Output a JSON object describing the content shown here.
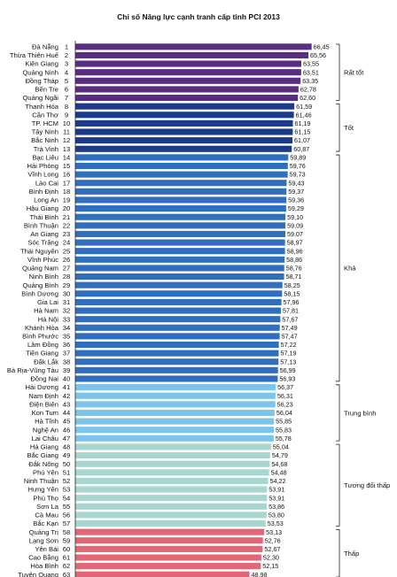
{
  "chart_data": {
    "type": "bar",
    "orientation": "horizontal",
    "title": "Chỉ số Năng lực cạnh tranh cấp tỉnh PCI 2013",
    "xlim": [
      0,
      80
    ],
    "xticks": [
      0,
      5,
      10,
      15,
      20,
      25,
      30,
      35,
      40,
      45,
      50,
      55,
      60,
      65,
      70,
      75,
      80
    ],
    "grid": false,
    "categories": [
      "Đà Nẵng",
      "Thừa Thiên Huế",
      "Kiên Giang",
      "Quảng Ninh",
      "Đồng Tháp",
      "Bến Tre",
      "Quảng Ngãi",
      "Thanh Hóa",
      "Cần Thơ",
      "TP. HCM",
      "Tây Ninh",
      "Bắc Ninh",
      "Trà Vinh",
      "Bạc Liêu",
      "Hải Phòng",
      "Vĩnh Long",
      "Lào Cai",
      "Bình Định",
      "Long An",
      "Hậu Giang",
      "Thái Bình",
      "Bình Thuận",
      "An Giang",
      "Sóc Trăng",
      "Thái Nguyên",
      "Vĩnh Phúc",
      "Quảng Nam",
      "Ninh Bình",
      "Quảng Bình",
      "Bình Dương",
      "Gia Lai",
      "Hà Nam",
      "Hà Nội",
      "Khánh Hòa",
      "Bình Phước",
      "Lâm Đồng",
      "Tiền Giang",
      "Đắk Lắk",
      "Bà Rịa-Vũng Tàu",
      "Đồng Nai",
      "Hải Dương",
      "Nam Định",
      "Điện Biên",
      "Kon Tum",
      "Hà Tĩnh",
      "Nghệ An",
      "Lai Châu",
      "Hà Giang",
      "Bắc Giang",
      "Đắk Nông",
      "Phú Yên",
      "Ninh Thuận",
      "Hưng Yên",
      "Phú Thọ",
      "Sơn La",
      "Cà Mau",
      "Bắc Kạn",
      "Quảng Trị",
      "Lạng Sơn",
      "Yên Bái",
      "Cao Bằng",
      "Hòa Bình",
      "Tuyên Quang"
    ],
    "ranks": [
      1,
      2,
      3,
      4,
      5,
      6,
      7,
      8,
      9,
      10,
      11,
      12,
      13,
      14,
      15,
      16,
      17,
      18,
      19,
      20,
      21,
      22,
      23,
      24,
      25,
      26,
      27,
      28,
      29,
      30,
      31,
      32,
      33,
      34,
      35,
      36,
      37,
      38,
      39,
      40,
      41,
      42,
      43,
      44,
      45,
      46,
      47,
      48,
      49,
      50,
      51,
      52,
      53,
      54,
      55,
      56,
      57,
      58,
      59,
      60,
      61,
      62,
      63
    ],
    "values": [
      66.45,
      65.56,
      63.55,
      63.51,
      63.35,
      62.78,
      62.6,
      61.59,
      61.46,
      61.19,
      61.15,
      61.07,
      60.87,
      59.89,
      59.76,
      59.73,
      59.43,
      59.37,
      59.36,
      59.29,
      59.1,
      59.09,
      59.07,
      58.97,
      58.96,
      58.86,
      58.76,
      58.71,
      58.25,
      58.15,
      57.96,
      57.81,
      57.67,
      57.49,
      57.47,
      57.22,
      57.19,
      57.13,
      56.99,
      56.93,
      56.37,
      56.31,
      56.23,
      56.04,
      55.85,
      55.83,
      55.78,
      55.04,
      54.79,
      54.68,
      54.48,
      54.22,
      53.91,
      53.91,
      53.86,
      53.8,
      53.53,
      53.13,
      52.76,
      52.67,
      52.3,
      52.15,
      48.98
    ],
    "value_labels": [
      "66,45",
      "65,56",
      "63,55",
      "63,51",
      "63,35",
      "62,78",
      "62,60",
      "61,59",
      "61,46",
      "61,19",
      "61,15",
      "61,07",
      "60,87",
      "59,89",
      "59,76",
      "59,73",
      "59,43",
      "59,37",
      "59,36",
      "59,29",
      "59,10",
      "59,09",
      "59,07",
      "58,97",
      "58,96",
      "58,86",
      "58,76",
      "58,71",
      "58,25",
      "58,15",
      "57,96",
      "57,81",
      "57,67",
      "57,49",
      "57,47",
      "57,22",
      "57,19",
      "57,13",
      "56,99",
      "56,93",
      "56,37",
      "56,31",
      "56,23",
      "56,04",
      "55,85",
      "55,83",
      "55,78",
      "55,04",
      "54,79",
      "54,68",
      "54,48",
      "54,22",
      "53,91",
      "53,91",
      "53,86",
      "53,80",
      "53,53",
      "53,13",
      "52,76",
      "52,67",
      "52,30",
      "52,15",
      "48,98"
    ],
    "groups": [
      {
        "name": "Rất tốt",
        "count": 7,
        "color": "#5b2d82"
      },
      {
        "name": "Tốt",
        "count": 6,
        "color": "#1a3a8c"
      },
      {
        "name": "Khá",
        "count": 27,
        "color": "#2f6fbd"
      },
      {
        "name": "Trung bình",
        "count": 7,
        "color": "#7cc4ea"
      },
      {
        "name": "Tương đối thấp",
        "count": 10,
        "color": "#a7d6cf"
      },
      {
        "name": "Thấp",
        "count": 6,
        "color": "#e26776"
      }
    ]
  }
}
